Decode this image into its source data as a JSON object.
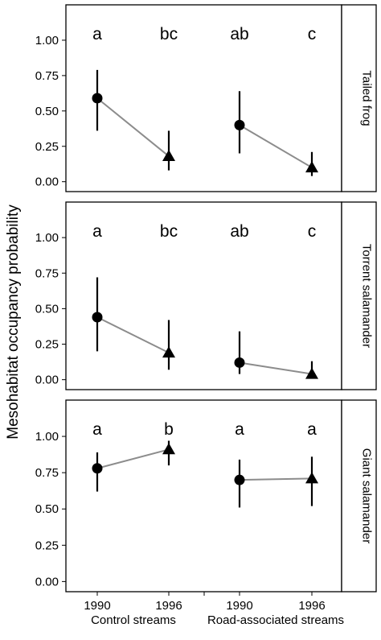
{
  "chart_data": {
    "type": "scatter",
    "ylabel": "Mesohabitat occupancy probability",
    "ylim": [
      -0.07,
      1.25
    ],
    "yticks": [
      "0.00",
      "0.25",
      "0.50",
      "0.75",
      "1.00"
    ],
    "x_tick_labels": [
      "1990",
      "1996",
      "1990",
      "1996"
    ],
    "group_labels": [
      "Control streams",
      "Road-associated streams"
    ],
    "colors": {
      "line": "#8c8c8c",
      "marker": "#000000",
      "frame": "#000000"
    },
    "markers": {
      "1990": "circle",
      "1996": "triangle"
    },
    "panels": [
      {
        "strip_label": "Tailed frog",
        "series": [
          {
            "group": "Control streams",
            "points": [
              {
                "x": "1990",
                "y": 0.59,
                "lo": 0.36,
                "hi": 0.79,
                "sig": "a"
              },
              {
                "x": "1996",
                "y": 0.18,
                "lo": 0.08,
                "hi": 0.36,
                "sig": "bc"
              }
            ]
          },
          {
            "group": "Road-associated streams",
            "points": [
              {
                "x": "1990",
                "y": 0.4,
                "lo": 0.2,
                "hi": 0.64,
                "sig": "ab"
              },
              {
                "x": "1996",
                "y": 0.1,
                "lo": 0.04,
                "hi": 0.21,
                "sig": "c"
              }
            ]
          }
        ]
      },
      {
        "strip_label": "Torrent salamander",
        "series": [
          {
            "group": "Control streams",
            "points": [
              {
                "x": "1990",
                "y": 0.44,
                "lo": 0.2,
                "hi": 0.72,
                "sig": "a"
              },
              {
                "x": "1996",
                "y": 0.19,
                "lo": 0.07,
                "hi": 0.42,
                "sig": "bc"
              }
            ]
          },
          {
            "group": "Road-associated streams",
            "points": [
              {
                "x": "1990",
                "y": 0.12,
                "lo": 0.04,
                "hi": 0.34,
                "sig": "ab"
              },
              {
                "x": "1996",
                "y": 0.04,
                "lo": 0.01,
                "hi": 0.13,
                "sig": "c"
              }
            ]
          }
        ]
      },
      {
        "strip_label": "Giant salamander",
        "series": [
          {
            "group": "Control streams",
            "points": [
              {
                "x": "1990",
                "y": 0.78,
                "lo": 0.62,
                "hi": 0.89,
                "sig": "a"
              },
              {
                "x": "1996",
                "y": 0.91,
                "lo": 0.8,
                "hi": 0.97,
                "sig": "b"
              }
            ]
          },
          {
            "group": "Road-associated streams",
            "points": [
              {
                "x": "1990",
                "y": 0.7,
                "lo": 0.51,
                "hi": 0.84,
                "sig": "a"
              },
              {
                "x": "1996",
                "y": 0.71,
                "lo": 0.52,
                "hi": 0.86,
                "sig": "a"
              }
            ]
          }
        ]
      }
    ]
  }
}
